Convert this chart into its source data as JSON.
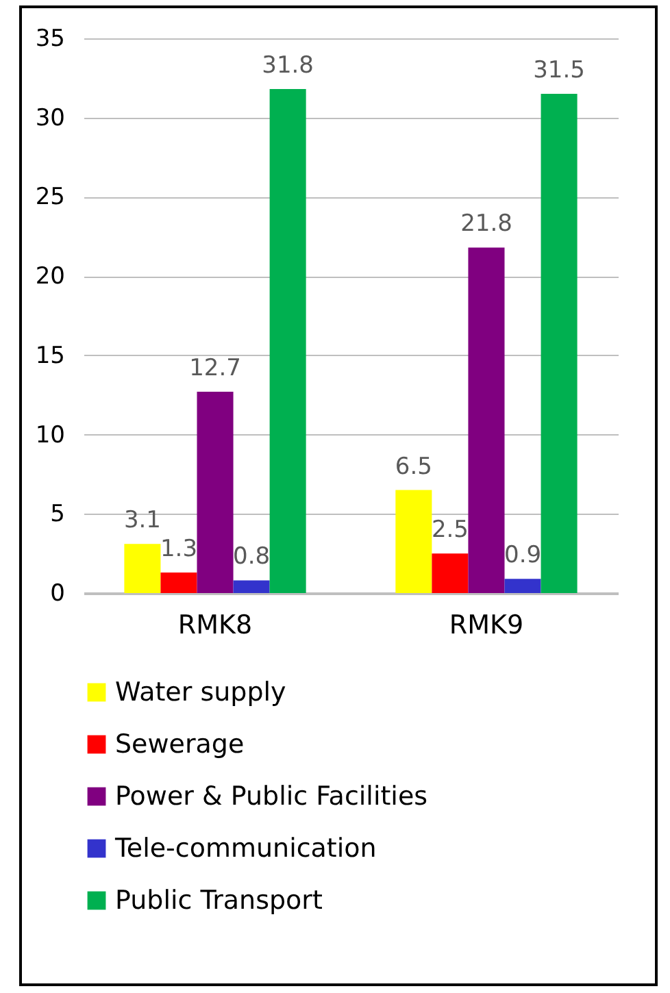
{
  "chart_data": {
    "type": "bar",
    "categories": [
      "RMK8",
      "RMK9"
    ],
    "series": [
      {
        "name": "Water supply",
        "color": "#ffff00",
        "values": [
          3.1,
          6.5
        ]
      },
      {
        "name": "Sewerage",
        "color": "#ff0000",
        "values": [
          1.3,
          2.5
        ]
      },
      {
        "name": "Power & Public Facilities",
        "color": "#800080",
        "values": [
          12.7,
          21.8
        ]
      },
      {
        "name": "Tele-communication",
        "color": "#3333cc",
        "values": [
          0.8,
          0.9
        ]
      },
      {
        "name": "Public Transport",
        "color": "#00b050",
        "values": [
          31.8,
          31.5
        ]
      }
    ],
    "ylim": [
      0,
      35
    ],
    "yticks": [
      0,
      5,
      10,
      15,
      20,
      25,
      30,
      35
    ],
    "grid": "y",
    "legend": "bottom",
    "data_labels": true
  }
}
